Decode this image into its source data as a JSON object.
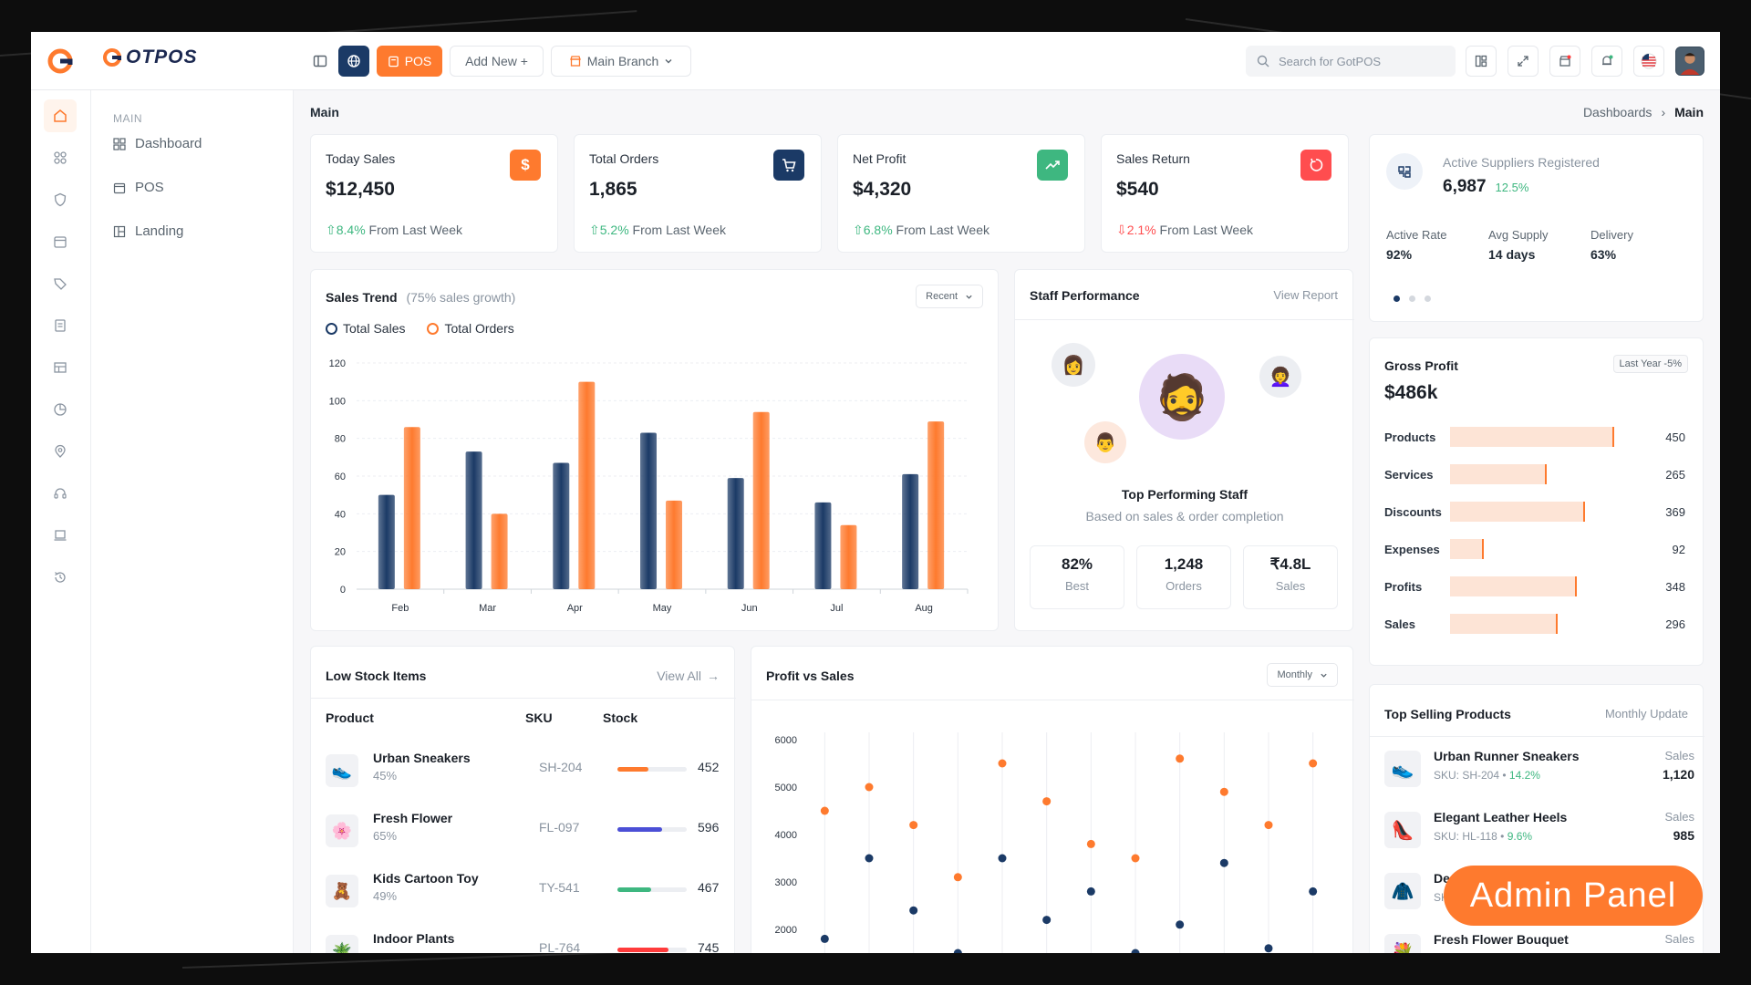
{
  "brand": {
    "name": "OTPOS"
  },
  "topbar": {
    "pos_label": "POS",
    "add_new_label": "Add New +",
    "branch_label": "Main Branch",
    "search_placeholder": "Search for GotPOS"
  },
  "sidebar": {
    "section": "MAIN",
    "items": [
      {
        "label": "Dashboard",
        "icon": "grid-icon"
      },
      {
        "label": "POS",
        "icon": "calendar-icon"
      },
      {
        "label": "Landing",
        "icon": "layout-icon"
      }
    ]
  },
  "page": {
    "title": "Main",
    "breadcrumb": [
      "Dashboards",
      "Main"
    ]
  },
  "kpis": [
    {
      "label": "Today Sales",
      "value": "$12,450",
      "trend": "8.4%",
      "trend_text": "From Last Week",
      "direction": "up",
      "icon": "dollar-icon",
      "color": "#fe7a2e"
    },
    {
      "label": "Total Orders",
      "value": "1,865",
      "trend": "5.2%",
      "trend_text": "From Last Week",
      "direction": "up",
      "icon": "cart-icon",
      "color": "#1b3a66"
    },
    {
      "label": "Net Profit",
      "value": "$4,320",
      "trend": "6.8%",
      "trend_text": "From Last Week",
      "direction": "up",
      "icon": "trend-up-icon",
      "color": "#3eb780"
    },
    {
      "label": "Sales Return",
      "value": "$540",
      "trend": "2.1%",
      "trend_text": "From Last Week",
      "direction": "down",
      "icon": "refresh-icon",
      "color": "#ff4d4f"
    }
  ],
  "suppliers": {
    "label": "Active Suppliers Registered",
    "value": "6,987",
    "growth": "12.5%",
    "stats": [
      {
        "label": "Active Rate",
        "value": "92%"
      },
      {
        "label": "Avg Supply",
        "value": "14 days"
      },
      {
        "label": "Delivery",
        "value": "63%"
      }
    ]
  },
  "sales_trend": {
    "title": "Sales Trend",
    "subtitle": "(75% sales growth)",
    "filter": "Recent",
    "legend": [
      "Total Sales",
      "Total Orders"
    ]
  },
  "chart_data": [
    {
      "type": "bar",
      "categories": [
        "Feb",
        "Mar",
        "Apr",
        "May",
        "Jun",
        "Jul",
        "Aug"
      ],
      "series": [
        {
          "name": "Total Sales",
          "values": [
            50,
            73,
            67,
            83,
            59,
            46,
            61
          ],
          "color": "#1b3a66"
        },
        {
          "name": "Total Orders",
          "values": [
            86,
            40,
            110,
            47,
            94,
            34,
            89
          ],
          "color": "#fe7a2e"
        }
      ],
      "ylim": [
        0,
        120
      ],
      "yticks": [
        0,
        20,
        40,
        60,
        80,
        100,
        120
      ],
      "grid": true
    },
    {
      "type": "line",
      "title": "Profit vs Sales",
      "filter": "Monthly",
      "points": [
        {
          "top": 4500,
          "bottom": 1800
        },
        {
          "top": 5000,
          "bottom": 3500
        },
        {
          "top": 4200,
          "bottom": 2400
        },
        {
          "top": 3100,
          "bottom": 1500
        },
        {
          "top": 5500,
          "bottom": 3500
        },
        {
          "top": 4700,
          "bottom": 2200
        },
        {
          "top": 3800,
          "bottom": 2800
        },
        {
          "top": 3500,
          "bottom": 1500
        },
        {
          "top": 5600,
          "bottom": 2100
        },
        {
          "top": 4900,
          "bottom": 3400
        },
        {
          "top": 4200,
          "bottom": 1600
        },
        {
          "top": 5500,
          "bottom": 2800
        }
      ],
      "ylim": [
        1000,
        6000
      ],
      "yticks": [
        2000,
        3000,
        4000,
        5000,
        6000
      ],
      "top_color": "#fe7a2e",
      "bottom_color": "#1b3a66"
    }
  ],
  "staff": {
    "title": "Staff Performance",
    "link": "View Report",
    "headline": "Top Performing Staff",
    "subtext": "Based on sales & order completion",
    "stats": [
      {
        "value": "82%",
        "label": "Best"
      },
      {
        "value": "1,248",
        "label": "Orders"
      },
      {
        "value": "₹4.8L",
        "label": "Sales"
      }
    ]
  },
  "gross_profit": {
    "title": "Gross Profit",
    "tag": "Last Year -5%",
    "value": "$486k",
    "max": 500,
    "rows": [
      {
        "label": "Products",
        "value": 450
      },
      {
        "label": "Services",
        "value": 265
      },
      {
        "label": "Discounts",
        "value": 369
      },
      {
        "label": "Expenses",
        "value": 92
      },
      {
        "label": "Profits",
        "value": 348
      },
      {
        "label": "Sales",
        "value": 296
      }
    ]
  },
  "low_stock": {
    "title": "Low Stock Items",
    "link": "View All",
    "columns": [
      "Product",
      "SKU",
      "Stock"
    ],
    "rows": [
      {
        "name": "Urban Sneakers",
        "pct": "45%",
        "level": 0.45,
        "sku": "SH-204",
        "stock": "452",
        "color": "#fe7a2e",
        "icon": "👟"
      },
      {
        "name": "Fresh Flower",
        "pct": "65%",
        "level": 0.65,
        "sku": "FL-097",
        "stock": "596",
        "color": "#4b4fd6",
        "icon": "🌸"
      },
      {
        "name": "Kids Cartoon Toy",
        "pct": "49%",
        "level": 0.49,
        "sku": "TY-541",
        "stock": "467",
        "color": "#3eb780",
        "icon": "🧸"
      },
      {
        "name": "Indoor Plants",
        "pct": "",
        "level": 0.74,
        "sku": "PL-764",
        "stock": "745",
        "color": "#ff3b3b",
        "icon": "🪴"
      }
    ]
  },
  "top_selling": {
    "title": "Top Selling Products",
    "link": "Monthly Update",
    "rows": [
      {
        "name": "Urban Runner Sneakers",
        "sku": "SKU: SH-204",
        "growth": "14.2%",
        "label": "Sales",
        "value": "1,120",
        "icon": "👟"
      },
      {
        "name": "Elegant Leather Heels",
        "sku": "SKU: HL-118",
        "growth": "9.6%",
        "label": "Sales",
        "value": "985",
        "icon": "👠"
      },
      {
        "name": "De",
        "sku": "SK",
        "growth": "",
        "label": "",
        "value": "",
        "icon": "🧥"
      },
      {
        "name": "Fresh Flower Bouquet",
        "sku": "",
        "growth": "",
        "label": "Sales",
        "value": "",
        "icon": "💐"
      }
    ]
  },
  "badge": {
    "text": "Admin Panel"
  }
}
